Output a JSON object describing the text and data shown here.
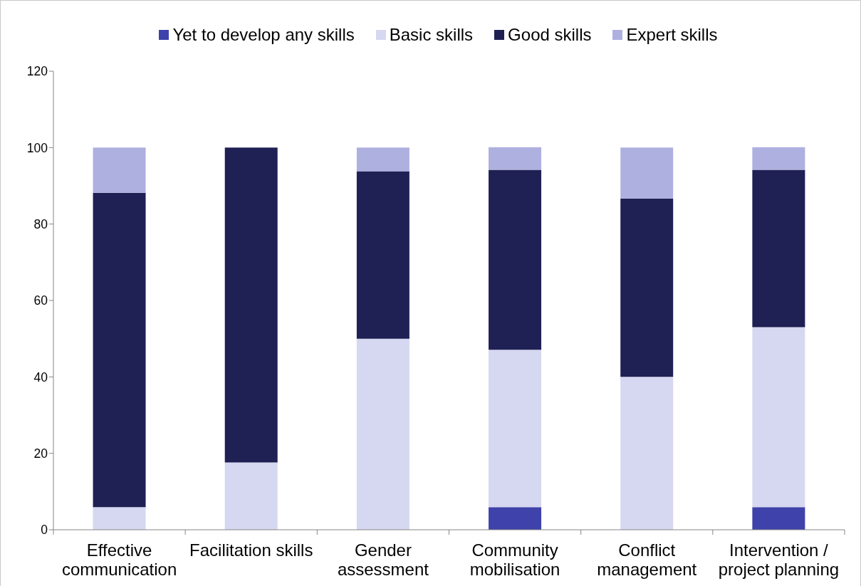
{
  "chart_data": {
    "type": "bar",
    "stacked": true,
    "categories": [
      "Effective communication",
      "Facilitation skills",
      "Gender assessment",
      "Community mobilisation",
      "Conflict management",
      "Intervention / project planning"
    ],
    "series": [
      {
        "name": "Yet to develop any skills",
        "color": "#3f42aa",
        "values": [
          0,
          0,
          0,
          5.9,
          0,
          5.9
        ]
      },
      {
        "name": "Basic skills",
        "color": "#d6d7f0",
        "values": [
          5.9,
          17.6,
          50,
          41.2,
          40,
          47.1
        ]
      },
      {
        "name": "Good skills",
        "color": "#1f2054",
        "values": [
          82.3,
          82.4,
          43.8,
          47.1,
          46.7,
          41.2
        ]
      },
      {
        "name": "Expert skills",
        "color": "#aeb0e0",
        "values": [
          11.8,
          0,
          6.2,
          5.9,
          13.3,
          5.9
        ]
      }
    ],
    "ylim": [
      0,
      120
    ],
    "yticks": [
      0,
      20,
      40,
      60,
      80,
      100,
      120
    ],
    "legend": "top"
  }
}
